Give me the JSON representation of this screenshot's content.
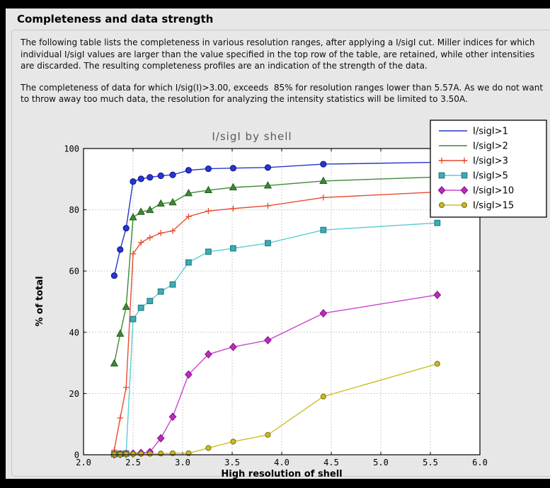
{
  "page": {
    "title": "Completeness and data strength",
    "paragraphs": [
      "The following table lists the completeness in various resolution ranges, after applying a I/sigI cut. Miller indices for which individual I/sigI values are larger than the value specified in the top row of the table, are retained, while other intensities are discarded. The resulting completeness profiles are an indication of the strength of the data.",
      "The completeness of data for which I/sig(I)>3.00, exceeds  85% for resolution ranges lower than 5.57A. As we do not want to throw away too much data, the resolution for analyzing the intensity statistics will be limited to 3.50A."
    ]
  },
  "colors": {
    "page_bg": "#e7e7e7",
    "frame": "#000000",
    "plot_bg": "#ffffff",
    "grid": "#b9b9b9",
    "title_color": "#5a5a5a",
    "legend_bg": "#ffffff",
    "legend_border": "#000000"
  },
  "chart_data": {
    "type": "line",
    "title": "I/sigI by shell",
    "xlabel": "High resolution of shell",
    "ylabel": "% of total",
    "xlim": [
      2.0,
      6.0
    ],
    "ylim": [
      0,
      100
    ],
    "xticks": [
      2.0,
      2.5,
      3.0,
      3.5,
      4.0,
      4.5,
      5.0,
      5.5,
      6.0
    ],
    "yticks": [
      0,
      20,
      40,
      60,
      80,
      100
    ],
    "grid": true,
    "legend_position": "top-right",
    "x": [
      2.31,
      2.37,
      2.43,
      2.5,
      2.58,
      2.67,
      2.78,
      2.9,
      3.06,
      3.26,
      3.51,
      3.86,
      4.42,
      5.57
    ],
    "series": [
      {
        "name": "I/sigI>1",
        "marker": "circle",
        "legend_sample": "line",
        "color": "#2636cc",
        "marker_fill": "#2636cf",
        "marker_edge": "#131384",
        "values": [
          58.5,
          67.0,
          74.0,
          89.2,
          90.1,
          90.6,
          91.1,
          91.4,
          92.9,
          93.4,
          93.6,
          93.8,
          94.9,
          95.5
        ]
      },
      {
        "name": "I/sigI>2",
        "marker": "triangle",
        "legend_sample": "line",
        "color": "#3c8a33",
        "marker_fill": "#3c8a31",
        "marker_edge": "#1e5c1e",
        "values": [
          29.8,
          39.5,
          48.3,
          77.5,
          79.3,
          79.9,
          82.0,
          82.4,
          85.4,
          86.4,
          87.3,
          87.9,
          89.4,
          90.7
        ]
      },
      {
        "name": "I/sigI>3",
        "marker": "plus",
        "legend_sample": "line+markers",
        "color": "#ea4b2e",
        "marker_fill": "#ea4b2e",
        "marker_edge": "#ea4b2e",
        "values": [
          1.5,
          12.0,
          22.0,
          65.6,
          69.3,
          70.9,
          72.4,
          73.1,
          77.8,
          79.6,
          80.4,
          81.3,
          84.0,
          85.8
        ]
      },
      {
        "name": "I/sigI>5",
        "marker": "square",
        "legend_sample": "line+markers",
        "color": "#5bccd1",
        "marker_fill": "#3badb5",
        "marker_edge": "#267c84",
        "values": [
          0.2,
          0.3,
          0.4,
          44.3,
          48.0,
          50.2,
          53.3,
          55.6,
          62.8,
          66.3,
          67.4,
          69.1,
          73.4,
          75.7
        ]
      },
      {
        "name": "I/sigI>10",
        "marker": "diamond",
        "legend_sample": "line+markers",
        "color": "#cb46cb",
        "marker_fill": "#bd2abd",
        "marker_edge": "#7c157c",
        "values": [
          0.1,
          0.2,
          0.3,
          0.4,
          0.6,
          0.9,
          5.4,
          12.4,
          26.2,
          32.8,
          35.2,
          37.4,
          46.2,
          52.2
        ]
      },
      {
        "name": "I/sigI>15",
        "marker": "circle-small",
        "legend_sample": "line+markers",
        "color": "#c9c122",
        "marker_fill": "#c9ba2b",
        "marker_edge": "#867c15",
        "values": [
          0.1,
          0.1,
          0.2,
          0.2,
          0.3,
          0.3,
          0.4,
          0.5,
          0.5,
          2.2,
          4.3,
          6.5,
          19.0,
          29.7
        ]
      }
    ]
  }
}
